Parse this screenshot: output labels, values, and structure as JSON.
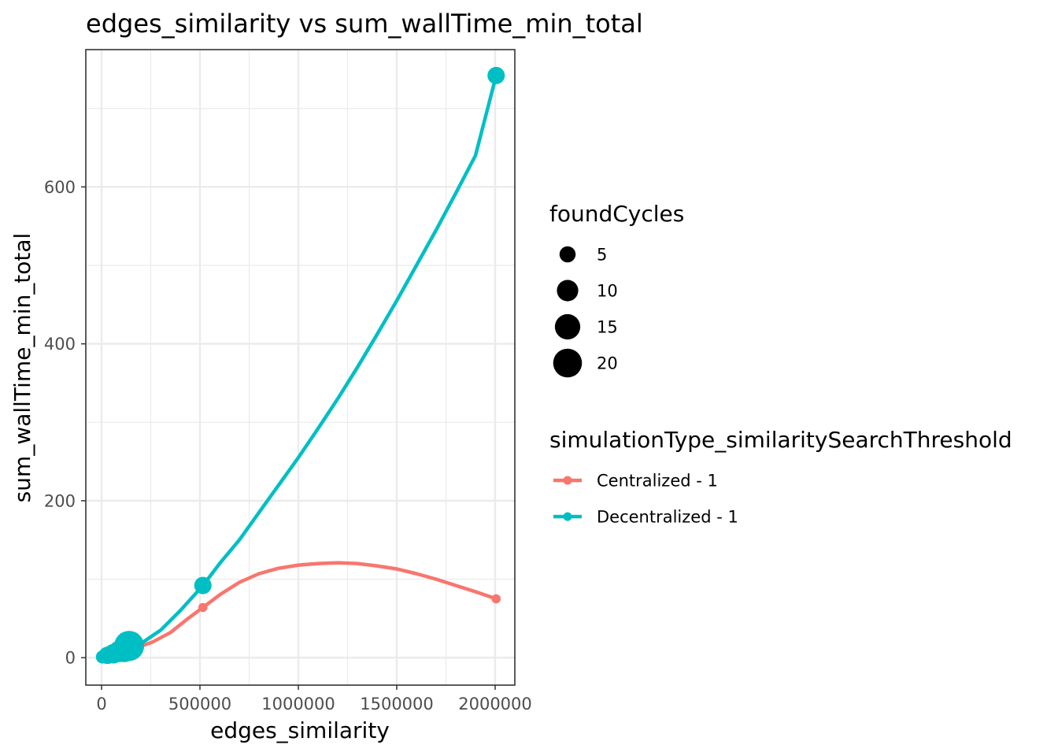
{
  "chart_data": {
    "type": "scatter",
    "title": "edges_similarity  vs  sum_wallTime_min_total",
    "xlabel": "edges_similarity",
    "ylabel": "sum_wallTime_min_total",
    "xlim": [
      -80000,
      2100000
    ],
    "ylim": [
      -35,
      775
    ],
    "x_ticks": [
      0,
      500000,
      1000000,
      1500000,
      2000000
    ],
    "x_tick_labels": [
      "0",
      "500000",
      "1000000",
      "1500000",
      "2000000"
    ],
    "y_ticks": [
      0,
      200,
      400,
      600
    ],
    "y_tick_labels": [
      "0",
      "200",
      "400",
      "600"
    ],
    "grid": true,
    "legend_position": "right",
    "size_legend": {
      "title": "foundCycles",
      "entries": [
        {
          "label": "5",
          "value": 5
        },
        {
          "label": "10",
          "value": 10
        },
        {
          "label": "15",
          "value": 15
        },
        {
          "label": "20",
          "value": 20
        }
      ]
    },
    "color_legend": {
      "title": "simulationType_similaritySearchThreshold"
    },
    "series": [
      {
        "name": "Centralized - 1",
        "color": "#F8766D",
        "points": [
          {
            "x": 5000,
            "y": 1,
            "size": 1
          },
          {
            "x": 20000,
            "y": 2,
            "size": 1
          },
          {
            "x": 50000,
            "y": 4,
            "size": 1
          },
          {
            "x": 80000,
            "y": 7,
            "size": 1
          },
          {
            "x": 110000,
            "y": 11,
            "size": 1
          },
          {
            "x": 140000,
            "y": 15,
            "size": 1
          },
          {
            "x": 515000,
            "y": 64,
            "size": 1
          },
          {
            "x": 2005000,
            "y": 75,
            "size": 1
          }
        ],
        "smooth": [
          {
            "x": 0,
            "y": 0
          },
          {
            "x": 60000,
            "y": 5
          },
          {
            "x": 120000,
            "y": 11
          },
          {
            "x": 180000,
            "y": 13
          },
          {
            "x": 260000,
            "y": 20
          },
          {
            "x": 350000,
            "y": 32
          },
          {
            "x": 440000,
            "y": 50
          },
          {
            "x": 515000,
            "y": 64
          },
          {
            "x": 600000,
            "y": 80
          },
          {
            "x": 700000,
            "y": 96
          },
          {
            "x": 800000,
            "y": 107
          },
          {
            "x": 900000,
            "y": 114
          },
          {
            "x": 1000000,
            "y": 118
          },
          {
            "x": 1100000,
            "y": 120
          },
          {
            "x": 1200000,
            "y": 121
          },
          {
            "x": 1300000,
            "y": 120
          },
          {
            "x": 1400000,
            "y": 117
          },
          {
            "x": 1500000,
            "y": 113
          },
          {
            "x": 1600000,
            "y": 107
          },
          {
            "x": 1700000,
            "y": 100
          },
          {
            "x": 1800000,
            "y": 92
          },
          {
            "x": 1900000,
            "y": 84
          },
          {
            "x": 2005000,
            "y": 75
          }
        ]
      },
      {
        "name": "Decentralized - 1",
        "color": "#00BFC4",
        "points": [
          {
            "x": 5000,
            "y": 1,
            "size": 3
          },
          {
            "x": 30000,
            "y": 3,
            "size": 6
          },
          {
            "x": 60000,
            "y": 5,
            "size": 8
          },
          {
            "x": 90000,
            "y": 8,
            "size": 10
          },
          {
            "x": 115000,
            "y": 10,
            "size": 14
          },
          {
            "x": 140000,
            "y": 15,
            "size": 22
          },
          {
            "x": 515000,
            "y": 92,
            "size": 6
          },
          {
            "x": 2005000,
            "y": 742,
            "size": 6
          }
        ],
        "smooth": [
          {
            "x": 0,
            "y": 0
          },
          {
            "x": 60000,
            "y": 4
          },
          {
            "x": 120000,
            "y": 9
          },
          {
            "x": 200000,
            "y": 18
          },
          {
            "x": 300000,
            "y": 35
          },
          {
            "x": 400000,
            "y": 60
          },
          {
            "x": 515000,
            "y": 92
          },
          {
            "x": 600000,
            "y": 120
          },
          {
            "x": 700000,
            "y": 150
          },
          {
            "x": 800000,
            "y": 185
          },
          {
            "x": 900000,
            "y": 220
          },
          {
            "x": 1000000,
            "y": 255
          },
          {
            "x": 1100000,
            "y": 292
          },
          {
            "x": 1200000,
            "y": 330
          },
          {
            "x": 1300000,
            "y": 370
          },
          {
            "x": 1400000,
            "y": 412
          },
          {
            "x": 1500000,
            "y": 455
          },
          {
            "x": 1600000,
            "y": 500
          },
          {
            "x": 1700000,
            "y": 545
          },
          {
            "x": 1800000,
            "y": 592
          },
          {
            "x": 1900000,
            "y": 640
          },
          {
            "x": 2005000,
            "y": 742
          }
        ]
      }
    ]
  }
}
